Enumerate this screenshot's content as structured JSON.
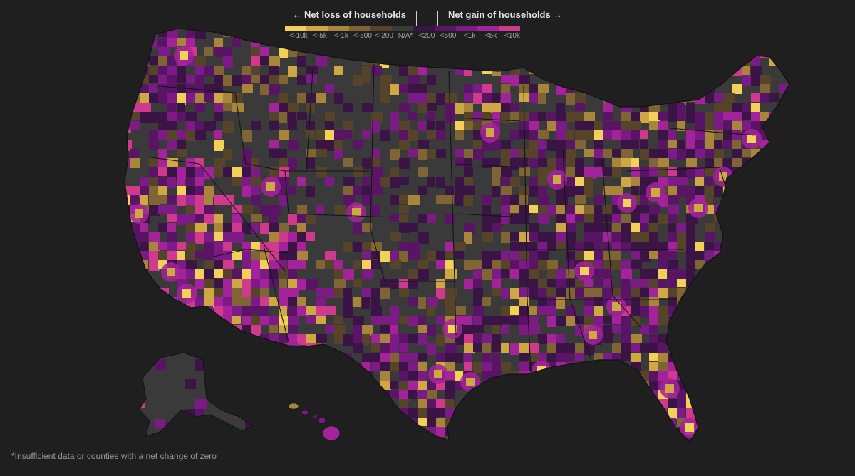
{
  "legend": {
    "loss_heading": "← Net loss of households",
    "gain_heading": "Net gain of households →",
    "bins": [
      {
        "label": "<-10k",
        "color": "#f2d159"
      },
      {
        "label": "<-5k",
        "color": "#cfa845"
      },
      {
        "label": "<-1k",
        "color": "#a8853a"
      },
      {
        "label": "<-500",
        "color": "#7e6533"
      },
      {
        "label": "<-200",
        "color": "#55432a"
      },
      {
        "label": "N/A*",
        "color": "#3a3a3a"
      },
      {
        "label": "<200",
        "color": "#3a1445"
      },
      {
        "label": "<500",
        "color": "#5a1466"
      },
      {
        "label": "<1k",
        "color": "#7c1a86"
      },
      {
        "label": "<5k",
        "color": "#a4239a"
      },
      {
        "label": "<10k",
        "color": "#cf3a8f"
      }
    ]
  },
  "map": {
    "type": "choropleth",
    "geography": "U.S. counties",
    "insets": [
      "Alaska",
      "Hawaii"
    ]
  },
  "footnote": "*Insufficient data or counties with a net change of zero"
}
